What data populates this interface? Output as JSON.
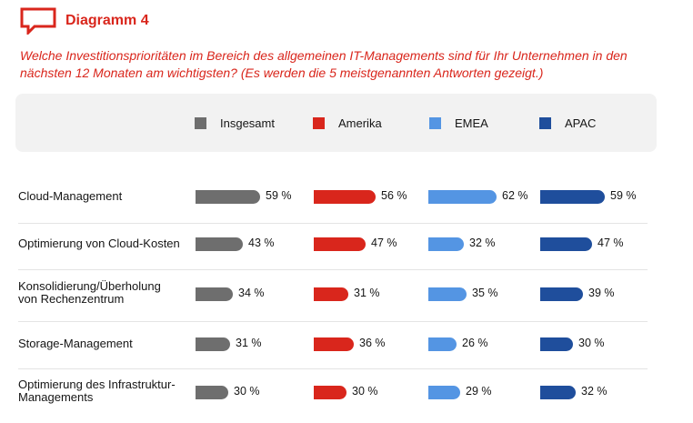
{
  "header": {
    "label": "Diagramm 4",
    "icon": "speech-bubble-icon"
  },
  "question": "Welche Investitionsprioritäten im Bereich des allgemeinen IT-Managements sind für Ihr Unternehmen in den nächsten 12 Monaten am wichtigsten? (Es werden die 5 meistgenannten Antworten gezeigt.)",
  "colors": {
    "accent": "#d9261c",
    "Insgesamt": "#6e6e6e",
    "Amerika": "#d9261c",
    "EMEA": "#5495e3",
    "APAC": "#1f4e9c"
  },
  "chart_data": {
    "type": "bar",
    "orientation": "horizontal",
    "title": "",
    "xlabel": "",
    "ylabel": "",
    "unit": "%",
    "legend_placement": "top",
    "grid": false,
    "categories": [
      "Cloud-Management",
      "Optimierung von Cloud-Kosten",
      "Konsolidierung/Überholung von Rechenzentrum",
      "Storage-Management",
      "Optimierung des Infrastruktur-Managements"
    ],
    "series": [
      {
        "name": "Insgesamt",
        "color": "#6e6e6e",
        "values": [
          59,
          43,
          34,
          31,
          30
        ],
        "labels": [
          "59 %",
          "43 %",
          "34 %",
          "31 %",
          "30 %"
        ]
      },
      {
        "name": "Amerika",
        "color": "#d9261c",
        "values": [
          56,
          47,
          31,
          36,
          30
        ],
        "labels": [
          "56 %",
          "47 %",
          "31 %",
          "36 %",
          "30 %"
        ]
      },
      {
        "name": "EMEA",
        "color": "#5495e3",
        "values": [
          62,
          32,
          35,
          26,
          29
        ],
        "labels": [
          "62 %",
          "32 %",
          "35 %",
          "26 %",
          "29 %"
        ]
      },
      {
        "name": "APAC",
        "color": "#1f4e9c",
        "values": [
          59,
          47,
          39,
          30,
          32
        ],
        "labels": [
          "59 %",
          "47 %",
          "39 %",
          "30 %",
          "32 %"
        ]
      }
    ]
  }
}
